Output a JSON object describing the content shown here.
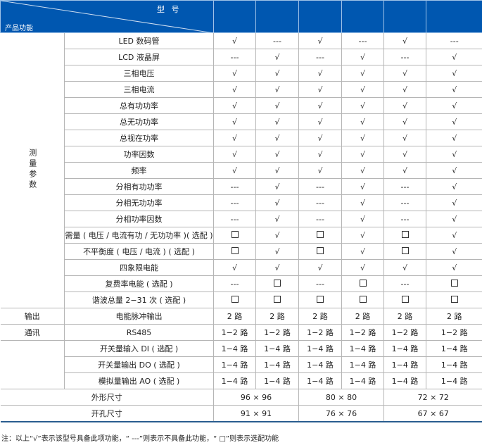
{
  "header": {
    "model_label": "型 号",
    "function_label": "产品功能",
    "model_columns": [
      "",
      "",
      "",
      "",
      "",
      ""
    ]
  },
  "colors": {
    "header_bg": "#0057b0",
    "grid": "#b5b5b5"
  },
  "symbols": {
    "yes": "√",
    "no": "---",
    "optional": "□"
  },
  "groups": [
    {
      "label": "测量参数",
      "rows": [
        {
          "feature": "LED 数码管",
          "values": [
            "√",
            "---",
            "√",
            "---",
            "√",
            "---"
          ]
        },
        {
          "feature": "LCD 液晶屏",
          "values": [
            "---",
            "√",
            "---",
            "√",
            "---",
            "√"
          ]
        },
        {
          "feature": "三相电压",
          "values": [
            "√",
            "√",
            "√",
            "√",
            "√",
            "√"
          ]
        },
        {
          "feature": "三相电流",
          "values": [
            "√",
            "√",
            "√",
            "√",
            "√",
            "√"
          ]
        },
        {
          "feature": "总有功功率",
          "values": [
            "√",
            "√",
            "√",
            "√",
            "√",
            "√"
          ]
        },
        {
          "feature": "总无功功率",
          "values": [
            "√",
            "√",
            "√",
            "√",
            "√",
            "√"
          ]
        },
        {
          "feature": "总视在功率",
          "values": [
            "√",
            "√",
            "√",
            "√",
            "√",
            "√"
          ]
        },
        {
          "feature": "功率因数",
          "values": [
            "√",
            "√",
            "√",
            "√",
            "√",
            "√"
          ]
        },
        {
          "feature": "频率",
          "values": [
            "√",
            "√",
            "√",
            "√",
            "√",
            "√"
          ]
        },
        {
          "feature": "分相有功功率",
          "values": [
            "---",
            "√",
            "---",
            "√",
            "---",
            "√"
          ]
        },
        {
          "feature": "分相无功功率",
          "values": [
            "---",
            "√",
            "---",
            "√",
            "---",
            "√"
          ]
        },
        {
          "feature": "分相功率因数",
          "values": [
            "---",
            "√",
            "---",
            "√",
            "---",
            "√"
          ]
        },
        {
          "feature": "需量 ( 电压 / 电流有功 / 无功功率 )( 选配 )",
          "values": [
            "□",
            "√",
            "□",
            "√",
            "□",
            "√"
          ]
        },
        {
          "feature": "不平衡度 ( 电压 / 电流 ) ( 选配 )",
          "values": [
            "□",
            "√",
            "□",
            "√",
            "□",
            "√"
          ]
        },
        {
          "feature": "四象限电能",
          "values": [
            "√",
            "√",
            "√",
            "√",
            "√",
            "√"
          ]
        },
        {
          "feature": "复费率电能 ( 选配 )",
          "values": [
            "---",
            "□",
            "---",
            "□",
            "---",
            "□"
          ]
        },
        {
          "feature": "谐波总量 2−31 次 ( 选配 )",
          "values": [
            "□",
            "□",
            "□",
            "□",
            "□",
            "□"
          ]
        }
      ]
    },
    {
      "label": "输出",
      "rows": [
        {
          "feature": "电能脉冲输出",
          "values": [
            "2 路",
            "2 路",
            "2 路",
            "2 路",
            "2 路",
            "2 路"
          ]
        }
      ]
    },
    {
      "label": "通讯",
      "rows": [
        {
          "feature": "RS485",
          "values": [
            "1−2 路",
            "1−2 路",
            "1−2 路",
            "1−2 路",
            "1−2 路",
            "1−2 路"
          ]
        }
      ]
    },
    {
      "label": "",
      "rows": [
        {
          "feature": "开关量输入 DI ( 选配 )",
          "values": [
            "1−4 路",
            "1−4 路",
            "1−4 路",
            "1−4 路",
            "1−4 路",
            "1−4 路"
          ]
        },
        {
          "feature": "开关量输出 DO ( 选配 )",
          "values": [
            "1−4 路",
            "1−4 路",
            "1−4 路",
            "1−4 路",
            "1−4 路",
            "1−4 路"
          ]
        },
        {
          "feature": "模拟量输出 AO ( 选配 )",
          "values": [
            "1−4 路",
            "1−4 路",
            "1−4 路",
            "1−4 路",
            "1−4 路",
            "1−4 路"
          ]
        }
      ]
    }
  ],
  "sizes": [
    {
      "label": "外形尺寸",
      "values": [
        "96 × 96",
        "80 × 80",
        "72 × 72"
      ]
    },
    {
      "label": "开孔尺寸",
      "values": [
        "91 × 91",
        "76 × 76",
        "67 × 67"
      ]
    }
  ],
  "note": "注：以上“√”表示该型号具备此项功能，“ ---”则表示不具备此功能，“ □”则表示选配功能"
}
